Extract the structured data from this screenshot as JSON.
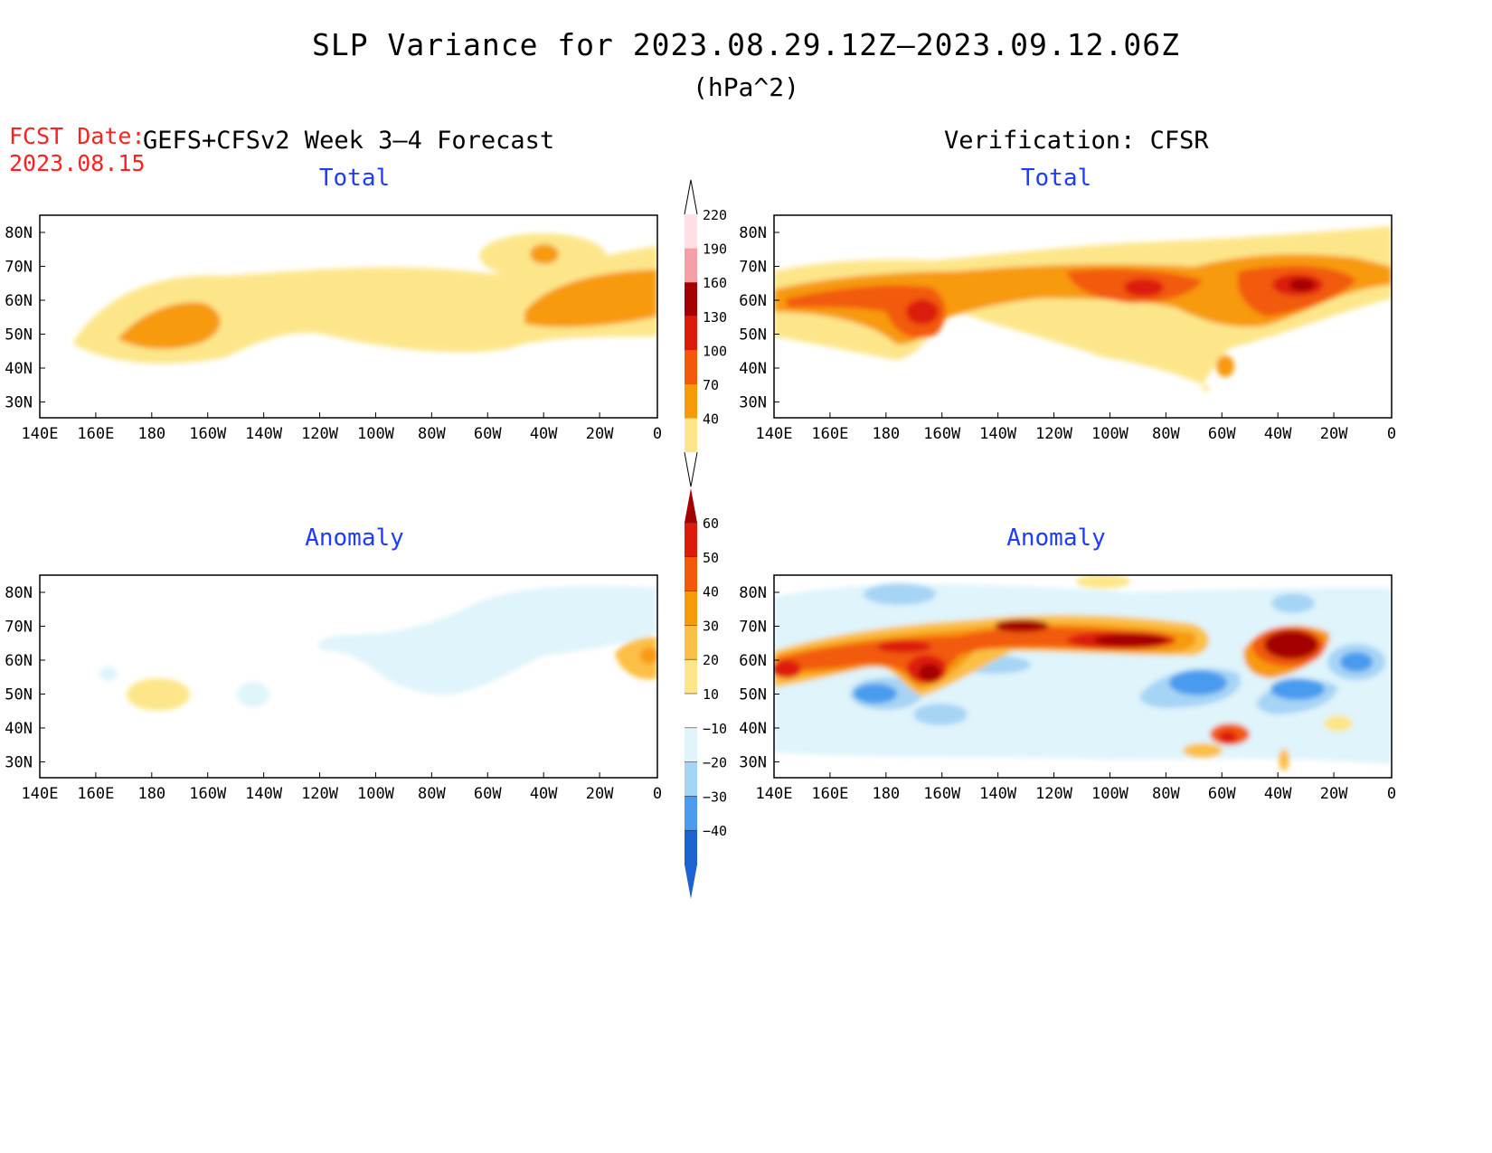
{
  "header": {
    "title": "SLP Variance for 2023.08.29.12Z–2023.09.12.06Z",
    "units": "(hPa^2)",
    "fcst_label": "FCST Date:",
    "fcst_date": "2023.08.15",
    "left_heading": "GEFS+CFSv2 Week 3–4 Forecast",
    "right_heading": "Verification: CFSR"
  },
  "panels": {
    "forecast_total": {
      "title": "Total"
    },
    "verify_total": {
      "title": "Total"
    },
    "forecast_anomaly": {
      "title": "Anomaly"
    },
    "verify_anomaly": {
      "title": "Anomaly"
    }
  },
  "map_axes": {
    "lon_labels": [
      "140E",
      "160E",
      "180",
      "160W",
      "140W",
      "120W",
      "100W",
      "80W",
      "60W",
      "40W",
      "20W",
      "0"
    ],
    "lat_labels": [
      "80N",
      "70N",
      "60N",
      "50N",
      "40N",
      "30N"
    ]
  },
  "colorbars": {
    "total": {
      "levels": [
        "220",
        "190",
        "160",
        "130",
        "100",
        "70",
        "40"
      ],
      "colors": [
        "#fde0e4",
        "#f4a0a6",
        "#a50000",
        "#dc1c0a",
        "#f25a0a",
        "#f79a0a",
        "#fde68a"
      ]
    },
    "anomaly": {
      "levels": [
        "60",
        "50",
        "40",
        "30",
        "20",
        "10",
        "−10",
        "−20",
        "−30",
        "−40"
      ],
      "colors": [
        "#a50000",
        "#dc1c0a",
        "#f25a0a",
        "#f79a0a",
        "#fbbf45",
        "#fde68a",
        "#ffffff",
        "#dff4fb",
        "#a6d4f5",
        "#4a9bef",
        "#1b63d1"
      ]
    }
  },
  "colors": {
    "title_blue": "#1e3cff",
    "fcst_red": "#ff2020"
  }
}
